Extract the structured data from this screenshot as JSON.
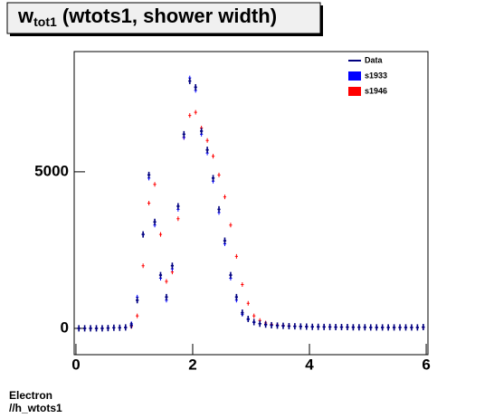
{
  "chart_data": {
    "type": "scatter",
    "title": "w",
    "title_subscript": "tot1",
    "title_rest": " (wtots1, shower width)",
    "notes": [
      "Electron",
      "//h_wtots1"
    ],
    "x": [
      0.05,
      0.15,
      0.25,
      0.35,
      0.45,
      0.55,
      0.65,
      0.75,
      0.85,
      0.95,
      1.05,
      1.15,
      1.25,
      1.35,
      1.45,
      1.55,
      1.65,
      1.75,
      1.85,
      1.95,
      2.05,
      2.15,
      2.25,
      2.35,
      2.45,
      2.55,
      2.65,
      2.75,
      2.85,
      2.95,
      3.05,
      3.15,
      3.25,
      3.35,
      3.45,
      3.55,
      3.65,
      3.75,
      3.85,
      3.95,
      4.05,
      4.15,
      4.25,
      4.35,
      4.45,
      4.55,
      4.65,
      4.75,
      4.85,
      4.95,
      5.05,
      5.15,
      5.25,
      5.35,
      5.45,
      5.55,
      5.65,
      5.75,
      5.85,
      5.95
    ],
    "series": [
      {
        "name": "Data",
        "color": "#000080",
        "values": [
          0,
          0,
          0,
          0,
          0,
          10,
          20,
          20,
          30,
          100,
          900,
          3000,
          4900,
          3400,
          1700,
          1000,
          2000,
          3900,
          6200,
          7900,
          7700,
          6300,
          5700,
          4800,
          3800,
          2800,
          1700,
          1000,
          500,
          300,
          200,
          150,
          120,
          100,
          90,
          80,
          70,
          65,
          60,
          55,
          50,
          50,
          45,
          45,
          40,
          40,
          40,
          35,
          35,
          35,
          30,
          30,
          30,
          30,
          30,
          30,
          30,
          30,
          30,
          40
        ]
      },
      {
        "name": "s1933",
        "color": "#0000ff",
        "values": [
          0,
          0,
          0,
          0,
          0,
          10,
          20,
          20,
          30,
          150,
          1000,
          3000,
          4800,
          3300,
          1600,
          900,
          1900,
          3800,
          6100,
          8000,
          7600,
          6200,
          5600,
          4700,
          3700,
          2700,
          1600,
          900,
          450,
          280,
          190,
          150,
          120,
          100,
          90,
          80,
          70,
          65,
          60,
          55,
          50,
          50,
          45,
          45,
          40,
          40,
          40,
          35,
          35,
          35,
          30,
          30,
          30,
          30,
          30,
          30,
          30,
          30,
          30,
          40
        ]
      },
      {
        "name": "s1946",
        "color": "#ff0000",
        "values": [
          0,
          0,
          0,
          0,
          0,
          10,
          15,
          20,
          25,
          60,
          400,
          2000,
          4000,
          4600,
          3000,
          1500,
          1800,
          3500,
          6100,
          6800,
          6900,
          6400,
          6000,
          5500,
          4900,
          4200,
          3300,
          2300,
          1400,
          800,
          400,
          250,
          170,
          130,
          110,
          95,
          85,
          75,
          68,
          62,
          56,
          52,
          48,
          46,
          42,
          40,
          38,
          36,
          34,
          32,
          30,
          30,
          30,
          30,
          30,
          30,
          28,
          28,
          28,
          28
        ]
      }
    ],
    "xlim": [
      -0.03,
      6.03
    ],
    "xticks": [
      0,
      2,
      4,
      6
    ],
    "ylim": [
      -840,
      8840
    ],
    "yticks": [
      0,
      5000
    ]
  }
}
